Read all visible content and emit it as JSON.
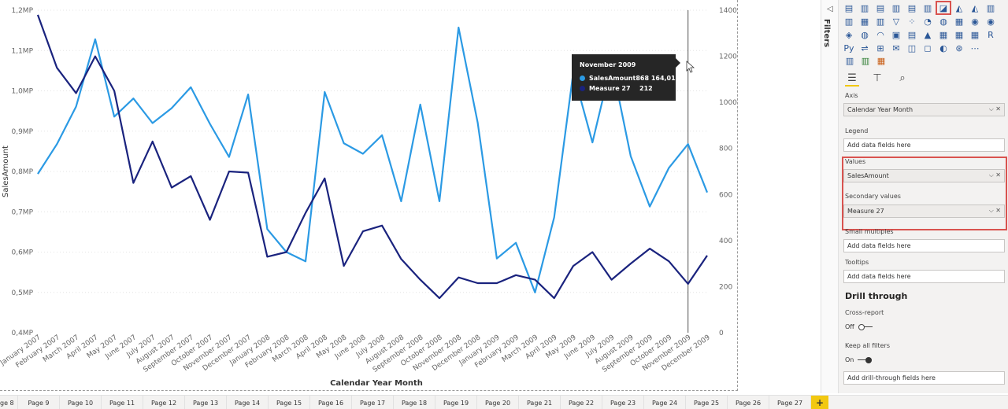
{
  "chart_data": {
    "type": "line",
    "title": "",
    "xlabel": "Calendar Year Month",
    "ylabel": "SalesAmount",
    "y2label": "",
    "ylim": [
      0.4,
      1.2
    ],
    "y2lim": [
      0,
      1400
    ],
    "yticks": [
      "0,4МР",
      "0,5МР",
      "0,6МР",
      "0,7МР",
      "0,8МР",
      "0,9МР",
      "1,0МР",
      "1,1МР",
      "1,2МР"
    ],
    "y2ticks": [
      "0",
      "200",
      "400",
      "600",
      "800",
      "1000",
      "1200",
      "1400"
    ],
    "grid": true,
    "legend": "none",
    "categories": [
      "January 2007",
      "February 2007",
      "March 2007",
      "April 2007",
      "May 2007",
      "June 2007",
      "July 2007",
      "August 2007",
      "September 2007",
      "October 2007",
      "November 2007",
      "December 2007",
      "January 2008",
      "February 2008",
      "March 2008",
      "April 2008",
      "May 2008",
      "June 2008",
      "July 2008",
      "August 2008",
      "September 2008",
      "October 2008",
      "November 2008",
      "December 2008",
      "January 2009",
      "February 2009",
      "March 2009",
      "April 2009",
      "May 2009",
      "June 2009",
      "July 2009",
      "August 2009",
      "September 2009",
      "October 2009",
      "November 2009",
      "December 2009"
    ],
    "series": [
      {
        "name": "SalesAmount",
        "axis": "left",
        "color": "#2b9ae4",
        "values": [
          0.794,
          0.868,
          0.961,
          1.128,
          0.936,
          0.981,
          0.92,
          0.957,
          1.009,
          0.918,
          0.836,
          0.991,
          0.657,
          0.6,
          0.577,
          0.997,
          0.87,
          0.844,
          0.89,
          0.726,
          0.966,
          0.726,
          1.157,
          0.921,
          0.584,
          0.623,
          0.5,
          0.686,
          1.046,
          0.872,
          1.07,
          0.838,
          0.713,
          0.809,
          0.868,
          0.748
        ]
      },
      {
        "name": "Measure 27",
        "axis": "right",
        "color": "#1a237e",
        "values": [
          1380,
          1150,
          1040,
          1200,
          1050,
          650,
          830,
          630,
          680,
          490,
          700,
          695,
          330,
          350,
          520,
          670,
          290,
          440,
          465,
          320,
          230,
          150,
          240,
          215,
          215,
          250,
          230,
          150,
          290,
          350,
          230,
          300,
          365,
          310,
          212,
          335
        ]
      }
    ]
  },
  "tooltip": {
    "title": "November 2009",
    "rows": [
      {
        "name": "SalesAmount",
        "value": "868 164,01 ₽",
        "color": "#2b9ae4"
      },
      {
        "name": "Measure 27",
        "value": "212",
        "color": "#1a237e"
      }
    ]
  },
  "filters_label": "Filters",
  "fields": {
    "axis_label": "Axis",
    "axis_value": "Calendar Year Month",
    "legend_label": "Legend",
    "legend_placeholder": "Add data fields here",
    "values_label": "Values",
    "values_value": "SalesAmount",
    "secondary_label": "Secondary values",
    "secondary_value": "Measure 27",
    "small_multiples_label": "Small multiples",
    "small_multiples_placeholder": "Add data fields here",
    "tooltips_label": "Tooltips",
    "tooltips_placeholder": "Add data fields here"
  },
  "drill": {
    "title": "Drill through",
    "cross_report_label": "Cross-report",
    "cross_report_state": "Off",
    "keep_filters_label": "Keep all filters",
    "keep_filters_state": "On",
    "placeholder": "Add drill-through fields here"
  },
  "viz_icons": [
    "stacked-bar",
    "stacked-column",
    "clustered-bar",
    "clustered-column",
    "100-bar",
    "100-column",
    "line-chart",
    "area",
    "stacked-area",
    "line-column",
    "line-clustered-column",
    "ribbon",
    "waterfall",
    "funnel",
    "scatter",
    "pie",
    "donut",
    "treemap",
    "map",
    "filled-map",
    "shape-map",
    "azure-map",
    "gauge",
    "card",
    "multi-row-card",
    "kpi",
    "slicer",
    "table",
    "matrix",
    "r-script",
    "python",
    "key-influencers",
    "decomposition-tree",
    "qa",
    "smart-narrative",
    "paginated",
    "power-apps",
    "power-automate",
    "more"
  ],
  "viz_glyphs": [
    "▤",
    "▥",
    "▤",
    "▥",
    "▤",
    "▥",
    "◪",
    "◭",
    "◭",
    "▥",
    "▥",
    "▦",
    "▥",
    "▽",
    "⁘",
    "◔",
    "◍",
    "▦",
    "◉",
    "◉",
    "◈",
    "◍",
    "◠",
    "▣",
    "▤",
    "▲",
    "▦",
    "▦",
    "▦",
    "R",
    "Py",
    "⇌",
    "⊞",
    "✉",
    "◫",
    "◻",
    "◐",
    "⊛",
    "⋯"
  ],
  "page_tabs": [
    "ge 8",
    "Page 9",
    "Page 10",
    "Page 11",
    "Page 12",
    "Page 13",
    "Page 14",
    "Page 15",
    "Page 16",
    "Page 17",
    "Page 18",
    "Page 19",
    "Page 20",
    "Page 21",
    "Page 22",
    "Page 23",
    "Page 24",
    "Page 25",
    "Page 26",
    "Page 27"
  ],
  "add_page": "+"
}
